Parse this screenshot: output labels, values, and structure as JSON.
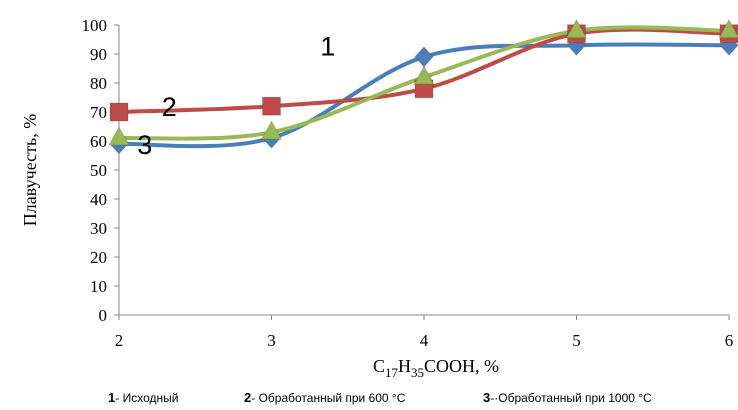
{
  "chart_data": {
    "type": "line",
    "xlabel_parts": [
      "C",
      "17",
      "H",
      "35",
      "COOH, %"
    ],
    "ylabel": "Плавучесть,  %",
    "x": [
      2,
      3,
      4,
      5,
      6
    ],
    "xlim": [
      2,
      6
    ],
    "ylim": [
      0,
      100
    ],
    "yticks": [
      0,
      10,
      20,
      30,
      40,
      50,
      60,
      70,
      80,
      90,
      100
    ],
    "grid": false,
    "legend_position": "bottom",
    "series": [
      {
        "name": "Исходный",
        "label": "1",
        "color": "#4a7ebb",
        "marker": "diamond",
        "values": [
          59,
          61,
          89,
          93,
          93
        ]
      },
      {
        "name": "Обработанный при 600 °С",
        "label": "2",
        "color": "#be4b48",
        "marker": "square",
        "values": [
          70,
          72,
          78,
          97,
          97
        ]
      },
      {
        "name": "Обработанный  при 1000 °С",
        "label": "3",
        "color": "#98b954",
        "marker": "triangle",
        "values": [
          61,
          63,
          82,
          98,
          98
        ]
      }
    ]
  },
  "legend": [
    {
      "num": "1",
      "sep": "- ",
      "text": "Исходный"
    },
    {
      "num": "2",
      "sep": "- ",
      "text": "Обработанный при 600 °С"
    },
    {
      "num": "3",
      "sep": "-·",
      "text": "Обработанный  при 1000 °С"
    }
  ]
}
